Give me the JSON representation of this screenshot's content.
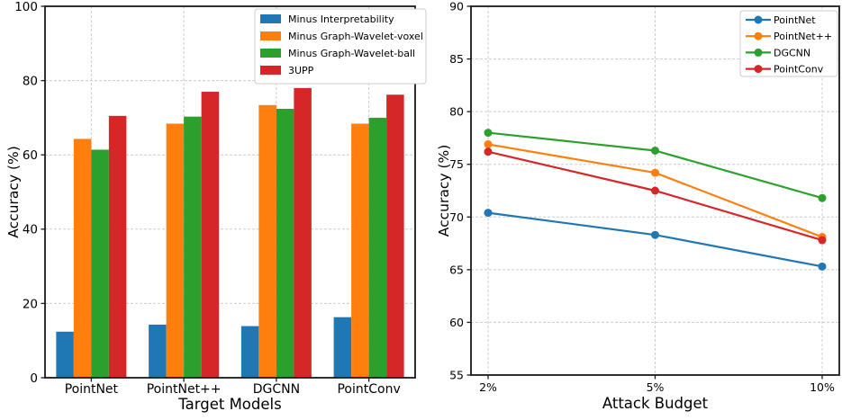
{
  "figure": {
    "background": "#ffffff",
    "palette": {
      "blue": "#1f77b4",
      "orange": "#ff7f0e",
      "green": "#2ca02c",
      "red": "#d62728",
      "grid": "#cccccc",
      "spine": "#1a1a1a",
      "legend_border": "#cccccc"
    }
  },
  "chart_data": [
    {
      "id": "ablation-bar-chart",
      "type": "bar",
      "title": "",
      "xlabel": "Target Models",
      "ylabel": "Accuracy (%)",
      "ylim": [
        0,
        100
      ],
      "yticks": [
        0,
        20,
        40,
        60,
        80,
        100
      ],
      "grid": true,
      "legend_position": "top-right",
      "categories": [
        "PointNet",
        "PointNet++",
        "DGCNN",
        "PointConv"
      ],
      "series": [
        {
          "name": "Minus Interpretability",
          "color": "#1f77b4",
          "values": [
            12.4,
            14.3,
            13.9,
            16.3
          ]
        },
        {
          "name": "Minus Graph-Wavelet-voxel",
          "color": "#ff7f0e",
          "values": [
            64.3,
            68.4,
            73.4,
            68.4
          ]
        },
        {
          "name": "Minus Graph-Wavelet-ball",
          "color": "#2ca02c",
          "values": [
            61.4,
            70.3,
            72.4,
            70.0
          ]
        },
        {
          "name": "3UPP",
          "color": "#d62728",
          "values": [
            70.5,
            77.0,
            78.0,
            76.2
          ]
        }
      ]
    },
    {
      "id": "attack-budget-line-chart",
      "type": "line",
      "title": "",
      "xlabel": "Attack Budget",
      "ylabel": "Accuracy (%)",
      "ylim": [
        55,
        90
      ],
      "yticks": [
        55,
        60,
        65,
        70,
        75,
        80,
        85,
        90
      ],
      "grid": true,
      "legend_position": "top-right",
      "categories": [
        "2%",
        "5%",
        "10%"
      ],
      "series": [
        {
          "name": "PointNet",
          "color": "#1f77b4",
          "values": [
            70.4,
            68.3,
            65.3
          ]
        },
        {
          "name": "PointNet++",
          "color": "#ff7f0e",
          "values": [
            76.9,
            74.2,
            68.1
          ]
        },
        {
          "name": "DGCNN",
          "color": "#2ca02c",
          "values": [
            78.0,
            76.3,
            71.8
          ]
        },
        {
          "name": "PointConv",
          "color": "#d62728",
          "values": [
            76.2,
            72.5,
            67.8
          ]
        }
      ]
    }
  ]
}
